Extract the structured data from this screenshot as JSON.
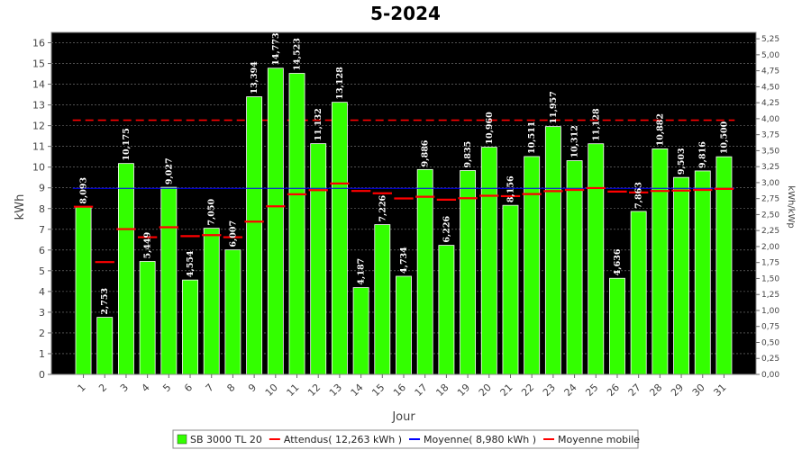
{
  "chart_data": {
    "type": "bar",
    "title": "5-2024",
    "xlabel": "Jour",
    "ylabel": "kWh",
    "ylabel_right": "kWh/kWp",
    "ylim": [
      0,
      16.5
    ],
    "ylim_right": [
      0,
      5.35
    ],
    "y_ticks": [
      "0",
      "1",
      "2",
      "3",
      "4",
      "5",
      "6",
      "7",
      "8",
      "9",
      "10",
      "11",
      "12",
      "13",
      "14",
      "15",
      "16"
    ],
    "y_ticks_right": [
      "0,00",
      "0,25",
      "0,50",
      "0,75",
      "1,00",
      "1,25",
      "1,50",
      "1,75",
      "2,00",
      "2,25",
      "2,50",
      "2,75",
      "3,00",
      "3,25",
      "3,50",
      "3,75",
      "4,00",
      "4,25",
      "4,50",
      "4,75",
      "5,00",
      "5,25"
    ],
    "categories": [
      "1",
      "2",
      "3",
      "4",
      "5",
      "6",
      "7",
      "8",
      "9",
      "10",
      "11",
      "12",
      "13",
      "14",
      "15",
      "16",
      "17",
      "18",
      "19",
      "20",
      "21",
      "22",
      "23",
      "24",
      "25",
      "26",
      "27",
      "28",
      "29",
      "30",
      "31"
    ],
    "series": [
      {
        "name": "SB 3000 TL 20",
        "type": "bar",
        "color": "#33ff00",
        "values": [
          8.093,
          2.753,
          10.175,
          5.449,
          9.027,
          4.554,
          7.05,
          6.007,
          13.394,
          14.773,
          14.523,
          11.132,
          13.128,
          4.187,
          7.226,
          4.734,
          9.886,
          6.226,
          9.835,
          10.96,
          8.156,
          10.511,
          11.957,
          10.312,
          11.128,
          4.636,
          7.863,
          10.882,
          9.503,
          9.816,
          10.5
        ],
        "labels": [
          "8,093",
          "2,753",
          "10,175",
          "5,449",
          "9,027",
          "4,554",
          "7,050",
          "6,007",
          "13,394",
          "14,773",
          "14,523",
          "11,132",
          "13,128",
          "4,187",
          "7,226",
          "4,734",
          "9,886",
          "6,226",
          "9,835",
          "10,960",
          "8,156",
          "10,511",
          "11,957",
          "10,312",
          "11,128",
          "4,636",
          "7,863",
          "10,882",
          "9,503",
          "9,816",
          "10,500"
        ]
      },
      {
        "name": "Attendus( 12,263 kWh )",
        "type": "dashed-line",
        "color": "#ff0000",
        "value": 12.263
      },
      {
        "name": "Moyenne( 8,980 kWh )",
        "type": "line",
        "color": "#0000ff",
        "value": 8.98
      },
      {
        "name": "Moyenne mobile",
        "type": "step",
        "color": "#ff0000",
        "values": [
          8.09,
          5.42,
          7.01,
          6.62,
          7.1,
          6.67,
          6.72,
          6.62,
          7.37,
          8.11,
          8.69,
          8.89,
          9.21,
          8.85,
          8.74,
          8.49,
          8.57,
          8.43,
          8.5,
          8.62,
          8.6,
          8.7,
          8.84,
          8.9,
          8.99,
          8.82,
          8.78,
          8.85,
          8.87,
          8.9,
          8.95
        ]
      }
    ],
    "grid": true,
    "legend_position": "bottom"
  }
}
